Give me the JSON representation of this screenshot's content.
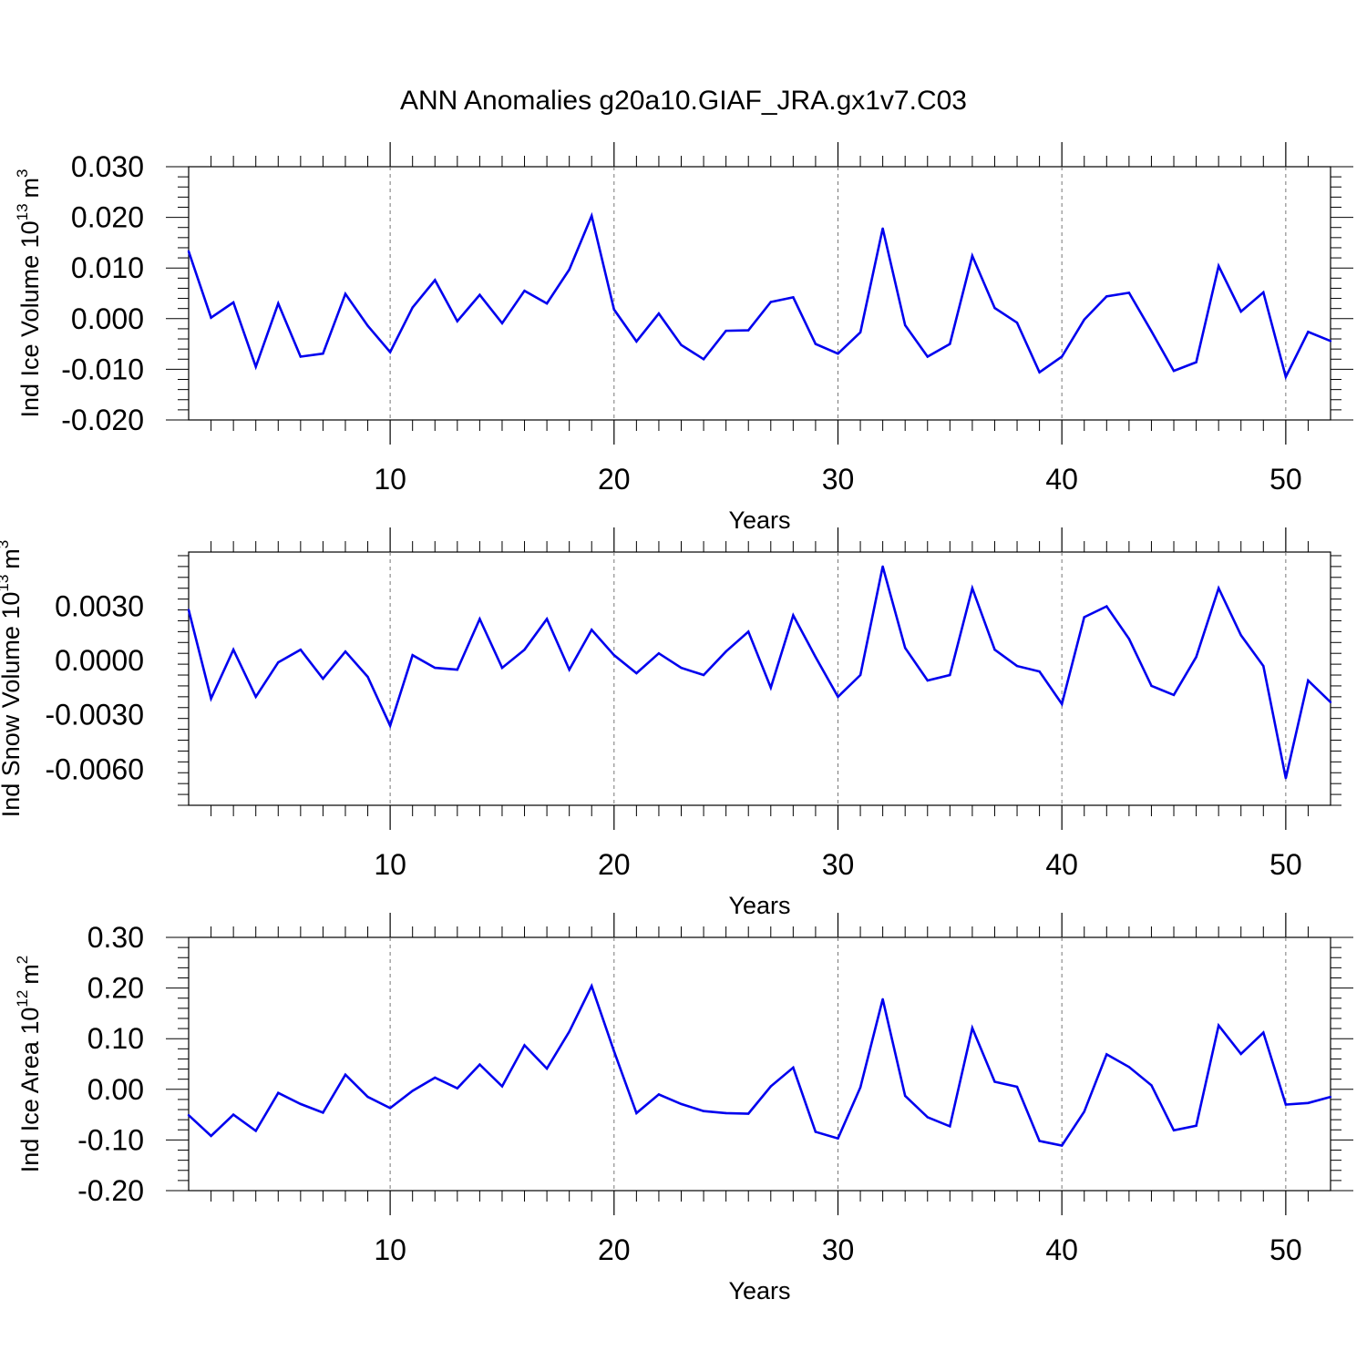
{
  "title": "ANN Anomalies g20a10.GIAF_JRA.gx1v7.C03",
  "line_color": "#0000ee",
  "chart_data": [
    {
      "type": "line",
      "xlabel": "Years",
      "ylabel_main": "Ind Ice Volume 10",
      "ylabel_exp": "13",
      "ylabel_unit": "m",
      "ylabel_unit_exp": "3",
      "xlim": [
        1,
        52
      ],
      "ylim": [
        -0.02,
        0.03
      ],
      "xticks": [
        10,
        20,
        30,
        40,
        50
      ],
      "xtick_labels": [
        "10",
        "20",
        "30",
        "40",
        "50"
      ],
      "yticks": [
        -0.02,
        -0.01,
        0.0,
        0.01,
        0.02,
        0.03
      ],
      "ytick_labels": [
        "-0.020",
        "-0.010",
        "0.000",
        "0.010",
        "0.020",
        "0.030"
      ],
      "x": [
        1,
        2,
        3,
        4,
        5,
        6,
        7,
        8,
        9,
        10,
        11,
        12,
        13,
        14,
        15,
        16,
        17,
        18,
        19,
        20,
        21,
        22,
        23,
        24,
        25,
        26,
        27,
        28,
        29,
        30,
        31,
        32,
        33,
        34,
        35,
        36,
        37,
        38,
        39,
        40,
        41,
        42,
        43,
        44,
        45,
        46,
        47,
        48,
        49,
        50,
        51,
        52
      ],
      "y": [
        0.0133,
        0.0002,
        0.0032,
        -0.0095,
        0.003,
        -0.0075,
        -0.0069,
        0.0049,
        -0.0014,
        -0.0066,
        0.0022,
        0.0076,
        -0.0005,
        0.0047,
        -0.0009,
        0.0055,
        0.003,
        0.0097,
        0.0203,
        0.0018,
        -0.0045,
        0.001,
        -0.0052,
        -0.008,
        -0.0024,
        -0.0023,
        0.0033,
        0.0042,
        -0.005,
        -0.0069,
        -0.0027,
        0.0178,
        -0.0013,
        -0.0075,
        -0.005,
        0.0124,
        0.0021,
        -0.0008,
        -0.0106,
        -0.0075,
        -0.0002,
        0.0044,
        0.0051,
        -0.0025,
        -0.0103,
        -0.0086,
        0.0104,
        0.0014,
        0.0052,
        -0.0115,
        -0.0026,
        -0.0044
      ]
    },
    {
      "type": "line",
      "xlabel": "Years",
      "ylabel_main": "Ind Snow Volume 10",
      "ylabel_exp": "13",
      "ylabel_unit": "m",
      "ylabel_unit_exp": "3",
      "xlim": [
        1,
        52
      ],
      "ylim": [
        -0.008,
        0.006
      ],
      "xticks": [
        10,
        20,
        30,
        40,
        50
      ],
      "xtick_labels": [
        "10",
        "20",
        "30",
        "40",
        "50"
      ],
      "yticks": [
        -0.006,
        -0.003,
        0.0,
        0.003
      ],
      "ytick_labels": [
        "-0.0060",
        "-0.0030",
        "0.0000",
        "0.0030"
      ],
      "x": [
        1,
        2,
        3,
        4,
        5,
        6,
        7,
        8,
        9,
        10,
        11,
        12,
        13,
        14,
        15,
        16,
        17,
        18,
        19,
        20,
        21,
        22,
        23,
        24,
        25,
        26,
        27,
        28,
        29,
        30,
        31,
        32,
        33,
        34,
        35,
        36,
        37,
        38,
        39,
        40,
        41,
        42,
        43,
        44,
        45,
        46,
        47,
        48,
        49,
        50,
        51,
        52
      ],
      "y": [
        0.0028,
        -0.0021,
        0.0006,
        -0.002,
        -0.0001,
        0.0006,
        -0.001,
        0.0005,
        -0.0009,
        -0.0036,
        0.0003,
        -0.0004,
        -0.0005,
        0.0023,
        -0.0004,
        0.0006,
        0.0023,
        -0.0005,
        0.0017,
        0.0003,
        -0.0007,
        0.0004,
        -0.0004,
        -0.0008,
        0.0005,
        0.0016,
        -0.0015,
        0.0025,
        0.0002,
        -0.002,
        -0.0008,
        0.0052,
        0.0007,
        -0.0011,
        -0.0008,
        0.004,
        0.0006,
        -0.0003,
        -0.0006,
        -0.0024,
        0.0024,
        0.003,
        0.0012,
        -0.0014,
        -0.0019,
        0.0002,
        0.004,
        0.0014,
        -0.0003,
        -0.0065,
        -0.0011,
        -0.0023
      ]
    },
    {
      "type": "line",
      "xlabel": "Years",
      "ylabel_main": "Ind Ice Area 10",
      "ylabel_exp": "12",
      "ylabel_unit": "m",
      "ylabel_unit_exp": "2",
      "xlim": [
        1,
        52
      ],
      "ylim": [
        -0.2,
        0.3
      ],
      "xticks": [
        10,
        20,
        30,
        40,
        50
      ],
      "xtick_labels": [
        "10",
        "20",
        "30",
        "40",
        "50"
      ],
      "yticks": [
        -0.2,
        -0.1,
        0.0,
        0.1,
        0.2,
        0.3
      ],
      "ytick_labels": [
        "-0.20",
        "-0.10",
        "0.00",
        "0.10",
        "0.20",
        "0.30"
      ],
      "x": [
        1,
        2,
        3,
        4,
        5,
        6,
        7,
        8,
        9,
        10,
        11,
        12,
        13,
        14,
        15,
        16,
        17,
        18,
        19,
        20,
        21,
        22,
        23,
        24,
        25,
        26,
        27,
        28,
        29,
        30,
        31,
        32,
        33,
        34,
        35,
        36,
        37,
        38,
        39,
        40,
        41,
        42,
        43,
        44,
        45,
        46,
        47,
        48,
        49,
        50,
        51,
        52
      ],
      "y": [
        -0.051,
        -0.092,
        -0.05,
        -0.082,
        -0.007,
        -0.029,
        -0.046,
        0.029,
        -0.015,
        -0.037,
        -0.003,
        0.023,
        0.002,
        0.049,
        0.006,
        0.087,
        0.041,
        0.114,
        0.204,
        0.075,
        -0.047,
        -0.01,
        -0.029,
        -0.043,
        -0.047,
        -0.048,
        0.006,
        0.043,
        -0.084,
        -0.097,
        0.004,
        0.178,
        -0.013,
        -0.055,
        -0.073,
        0.121,
        0.015,
        0.005,
        -0.102,
        -0.111,
        -0.044,
        0.069,
        0.044,
        0.008,
        -0.081,
        -0.072,
        0.126,
        0.07,
        0.112,
        -0.03,
        -0.027,
        -0.015
      ]
    }
  ]
}
